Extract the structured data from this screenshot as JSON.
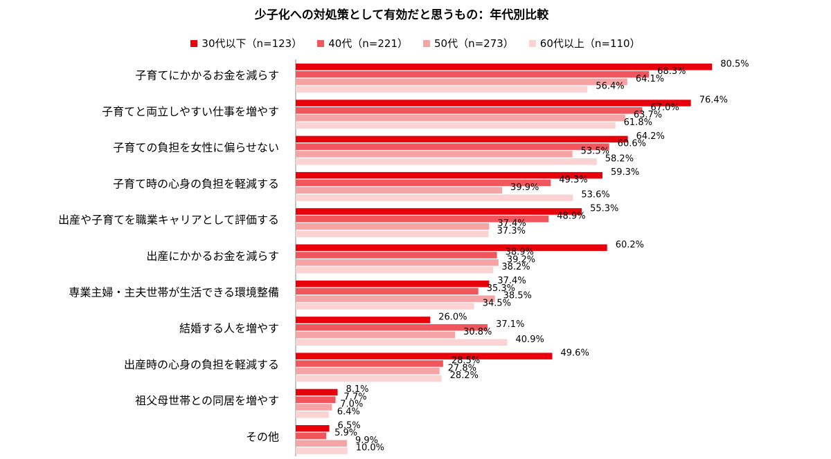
{
  "chart_data": {
    "type": "barh",
    "title": "少子化への対処策として有効だと思うもの：年代別比較",
    "categories": [
      "子育てにかかるお金を減らす",
      "子育てと両立しやすい仕事を増やす",
      "子育ての負担を女性に偏らせない",
      "子育て時の心身の負担を軽減する",
      "出産や子育てを職業キャリアとして評価する",
      "出産にかかるお金を減らす",
      "専業主婦・主夫世帯が生活できる環境整備",
      "結婚する人を増やす",
      "出産時の心身の負担を軽減する",
      "祖父母世帯との同居を増やす",
      "その他"
    ],
    "xlim": [
      0,
      100
    ],
    "series": [
      {
        "name": "30代以下（n=123）",
        "color": "#e8000b",
        "values": [
          80.5,
          76.4,
          64.2,
          59.3,
          55.3,
          60.2,
          37.4,
          26.0,
          49.6,
          8.1,
          6.5
        ],
        "value_labels": [
          "80.5%",
          "76.4%",
          "64.2%",
          "59.3%",
          "55.3%",
          "60.2%",
          "37.4%",
          "26.0%",
          "49.6%",
          "8.1%",
          "6.5%"
        ]
      },
      {
        "name": "40代（n=221）",
        "color": "#f0565b",
        "values": [
          68.3,
          67.0,
          60.6,
          49.3,
          48.9,
          38.9,
          35.3,
          37.1,
          28.5,
          7.7,
          5.9
        ],
        "value_labels": [
          "68.3%",
          "67.0%",
          "60.6%",
          "49.3%",
          "48.9%",
          "38.9%",
          "35.3%",
          "37.1%",
          "28.5%",
          "7.7%",
          "5.9%"
        ]
      },
      {
        "name": "50代（n=273）",
        "color": "#f5a3a4",
        "values": [
          64.1,
          63.7,
          53.5,
          39.9,
          37.4,
          39.2,
          38.5,
          30.8,
          27.8,
          7.0,
          9.9
        ],
        "value_labels": [
          "64.1%",
          "63.7%",
          "53.5%",
          "39.9%",
          "37.4%",
          "39.2%",
          "38.5%",
          "30.8%",
          "27.8%",
          "7.0%",
          "9.9%"
        ]
      },
      {
        "name": "60代以上（n=110）",
        "color": "#fbd3d3",
        "values": [
          56.4,
          61.8,
          58.2,
          53.6,
          37.3,
          38.2,
          34.5,
          40.9,
          28.2,
          6.4,
          10.0
        ],
        "value_labels": [
          "56.4%",
          "61.8%",
          "58.2%",
          "53.6%",
          "37.3%",
          "38.2%",
          "34.5%",
          "40.9%",
          "28.2%",
          "6.4%",
          "10.0%"
        ]
      }
    ]
  }
}
